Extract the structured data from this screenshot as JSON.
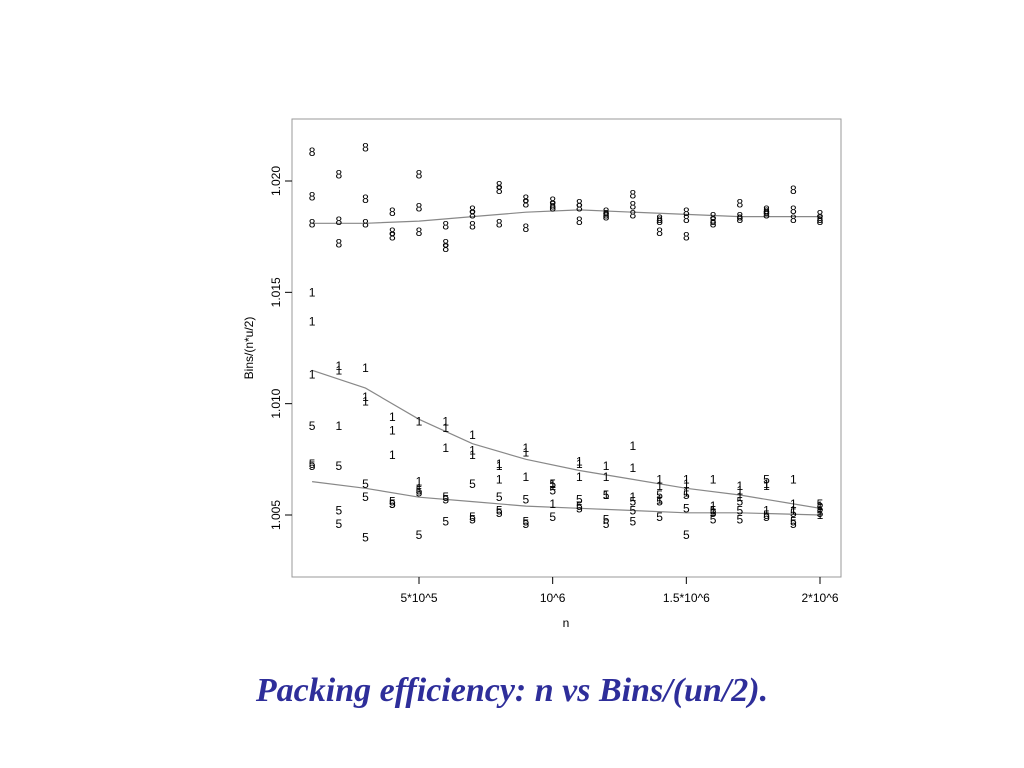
{
  "caption": "Packing efficiency: n vs Bins/(un/2).",
  "colors": {
    "caption": "#2e2e9a",
    "frame": "#999999",
    "curve": "#888888",
    "point": "#000000"
  },
  "chart_data": {
    "type": "scatter",
    "title": "",
    "xlabel": "n",
    "ylabel": "Bins/(n*u/2)",
    "xlim": [
      0,
      2000000
    ],
    "ylim": [
      1.0015,
      1.0223
    ],
    "x_ticks": [
      {
        "value": 500000,
        "label": "5*10^5"
      },
      {
        "value": 1000000,
        "label": "10^6"
      },
      {
        "value": 1500000,
        "label": "1.5*10^6"
      },
      {
        "value": 2000000,
        "label": "2*10^6"
      }
    ],
    "y_ticks": [
      {
        "value": 1.005,
        "label": "1.005"
      },
      {
        "value": 1.01,
        "label": "1.010"
      },
      {
        "value": 1.015,
        "label": "1.015"
      },
      {
        "value": 1.02,
        "label": "1.020"
      }
    ],
    "grid": false,
    "legend": "none",
    "series": [
      {
        "name": "8",
        "points": [
          [
            100000,
            1.0213
          ],
          [
            100000,
            1.0193
          ],
          [
            100000,
            1.0181
          ],
          [
            200000,
            1.0203
          ],
          [
            200000,
            1.0182
          ],
          [
            200000,
            1.0172
          ],
          [
            300000,
            1.0215
          ],
          [
            300000,
            1.0192
          ],
          [
            300000,
            1.0181
          ],
          [
            400000,
            1.0186
          ],
          [
            400000,
            1.0177
          ],
          [
            400000,
            1.0175
          ],
          [
            500000,
            1.0203
          ],
          [
            500000,
            1.0188
          ],
          [
            500000,
            1.0177
          ],
          [
            600000,
            1.018
          ],
          [
            600000,
            1.0172
          ],
          [
            600000,
            1.017
          ],
          [
            700000,
            1.0187
          ],
          [
            700000,
            1.0185
          ],
          [
            700000,
            1.018
          ],
          [
            800000,
            1.0198
          ],
          [
            800000,
            1.0196
          ],
          [
            800000,
            1.0181
          ],
          [
            900000,
            1.0192
          ],
          [
            900000,
            1.019
          ],
          [
            900000,
            1.0179
          ],
          [
            1000000,
            1.0191
          ],
          [
            1000000,
            1.0189
          ],
          [
            1000000,
            1.0188
          ],
          [
            1100000,
            1.019
          ],
          [
            1100000,
            1.0188
          ],
          [
            1100000,
            1.0182
          ],
          [
            1200000,
            1.0186
          ],
          [
            1200000,
            1.0185
          ],
          [
            1200000,
            1.0184
          ],
          [
            1300000,
            1.0194
          ],
          [
            1300000,
            1.0189
          ],
          [
            1300000,
            1.0185
          ],
          [
            1400000,
            1.0183
          ],
          [
            1400000,
            1.0182
          ],
          [
            1400000,
            1.0177
          ],
          [
            1500000,
            1.0186
          ],
          [
            1500000,
            1.0183
          ],
          [
            1500000,
            1.0175
          ],
          [
            1600000,
            1.0184
          ],
          [
            1600000,
            1.0182
          ],
          [
            1600000,
            1.0181
          ],
          [
            1700000,
            1.019
          ],
          [
            1700000,
            1.0184
          ],
          [
            1700000,
            1.0183
          ],
          [
            1800000,
            1.0187
          ],
          [
            1800000,
            1.0186
          ],
          [
            1800000,
            1.0185
          ],
          [
            1900000,
            1.0196
          ],
          [
            1900000,
            1.0187
          ],
          [
            1900000,
            1.0183
          ],
          [
            2000000,
            1.0185
          ],
          [
            2000000,
            1.0183
          ],
          [
            2000000,
            1.0182
          ]
        ],
        "smooth": [
          [
            100000,
            1.0181
          ],
          [
            300000,
            1.0181
          ],
          [
            500000,
            1.0182
          ],
          [
            700000,
            1.0184
          ],
          [
            900000,
            1.0186
          ],
          [
            1100000,
            1.0187
          ],
          [
            1300000,
            1.0186
          ],
          [
            1500000,
            1.0185
          ],
          [
            1700000,
            1.0184
          ],
          [
            2000000,
            1.0184
          ]
        ]
      },
      {
        "name": "1",
        "points": [
          [
            100000,
            1.015
          ],
          [
            100000,
            1.0137
          ],
          [
            100000,
            1.0113
          ],
          [
            200000,
            1.0117
          ],
          [
            200000,
            1.0115
          ],
          [
            200000,
            1.009
          ],
          [
            300000,
            1.0116
          ],
          [
            300000,
            1.0103
          ],
          [
            300000,
            1.0101
          ],
          [
            400000,
            1.0094
          ],
          [
            400000,
            1.0088
          ],
          [
            400000,
            1.0077
          ],
          [
            500000,
            1.0092
          ],
          [
            500000,
            1.0065
          ],
          [
            500000,
            1.0062
          ],
          [
            600000,
            1.0092
          ],
          [
            600000,
            1.0089
          ],
          [
            600000,
            1.008
          ],
          [
            700000,
            1.0086
          ],
          [
            700000,
            1.0079
          ],
          [
            700000,
            1.0077
          ],
          [
            800000,
            1.0073
          ],
          [
            800000,
            1.0066
          ],
          [
            800000,
            1.0072
          ],
          [
            900000,
            1.008
          ],
          [
            900000,
            1.0078
          ],
          [
            900000,
            1.0067
          ],
          [
            1000000,
            1.0064
          ],
          [
            1000000,
            1.0063
          ],
          [
            1000000,
            1.0055
          ],
          [
            1100000,
            1.0074
          ],
          [
            1100000,
            1.0073
          ],
          [
            1100000,
            1.0067
          ],
          [
            1200000,
            1.0072
          ],
          [
            1200000,
            1.0067
          ],
          [
            1200000,
            1.0059
          ],
          [
            1300000,
            1.0081
          ],
          [
            1300000,
            1.0071
          ],
          [
            1300000,
            1.0058
          ],
          [
            1400000,
            1.0066
          ],
          [
            1400000,
            1.0063
          ],
          [
            1400000,
            1.0057
          ],
          [
            1500000,
            1.0066
          ],
          [
            1500000,
            1.0064
          ],
          [
            1500000,
            1.006
          ],
          [
            1600000,
            1.0066
          ],
          [
            1600000,
            1.0054
          ],
          [
            1600000,
            1.0052
          ],
          [
            1700000,
            1.0063
          ],
          [
            1700000,
            1.0061
          ],
          [
            1700000,
            1.0058
          ],
          [
            1800000,
            1.0064
          ],
          [
            1800000,
            1.0063
          ],
          [
            1800000,
            1.0052
          ],
          [
            1900000,
            1.0066
          ],
          [
            1900000,
            1.0055
          ],
          [
            1900000,
            1.0052
          ],
          [
            2000000,
            1.0054
          ],
          [
            2000000,
            1.0052
          ],
          [
            2000000,
            1.005
          ]
        ],
        "smooth": [
          [
            100000,
            1.0115
          ],
          [
            300000,
            1.0107
          ],
          [
            500000,
            1.0093
          ],
          [
            700000,
            1.0082
          ],
          [
            900000,
            1.0075
          ],
          [
            1100000,
            1.007
          ],
          [
            1300000,
            1.0066
          ],
          [
            1500000,
            1.0062
          ],
          [
            1700000,
            1.0059
          ],
          [
            1900000,
            1.0055
          ],
          [
            2000000,
            1.0053
          ]
        ]
      },
      {
        "name": "5",
        "points": [
          [
            100000,
            1.009
          ],
          [
            100000,
            1.0073
          ],
          [
            100000,
            1.0072
          ],
          [
            200000,
            1.0072
          ],
          [
            200000,
            1.0052
          ],
          [
            200000,
            1.0046
          ],
          [
            300000,
            1.0064
          ],
          [
            300000,
            1.0058
          ],
          [
            300000,
            1.004
          ],
          [
            400000,
            1.0056
          ],
          [
            400000,
            1.0055
          ],
          [
            400000,
            1.0055
          ],
          [
            500000,
            1.0061
          ],
          [
            500000,
            1.006
          ],
          [
            500000,
            1.0041
          ],
          [
            600000,
            1.0058
          ],
          [
            600000,
            1.0057
          ],
          [
            600000,
            1.0047
          ],
          [
            700000,
            1.0064
          ],
          [
            700000,
            1.0049
          ],
          [
            700000,
            1.0048
          ],
          [
            800000,
            1.0058
          ],
          [
            800000,
            1.0052
          ],
          [
            800000,
            1.0051
          ],
          [
            900000,
            1.0057
          ],
          [
            900000,
            1.0047
          ],
          [
            900000,
            1.0046
          ],
          [
            1000000,
            1.0064
          ],
          [
            1000000,
            1.0061
          ],
          [
            1000000,
            1.0049
          ],
          [
            1100000,
            1.0057
          ],
          [
            1100000,
            1.0054
          ],
          [
            1100000,
            1.0053
          ],
          [
            1200000,
            1.0059
          ],
          [
            1200000,
            1.0048
          ],
          [
            1200000,
            1.0046
          ],
          [
            1300000,
            1.0056
          ],
          [
            1300000,
            1.0052
          ],
          [
            1300000,
            1.0047
          ],
          [
            1400000,
            1.0059
          ],
          [
            1400000,
            1.0056
          ],
          [
            1400000,
            1.0049
          ],
          [
            1500000,
            1.0059
          ],
          [
            1500000,
            1.0053
          ],
          [
            1500000,
            1.0041
          ],
          [
            1600000,
            1.0052
          ],
          [
            1600000,
            1.0051
          ],
          [
            1600000,
            1.0048
          ],
          [
            1700000,
            1.0056
          ],
          [
            1700000,
            1.0052
          ],
          [
            1700000,
            1.0048
          ],
          [
            1800000,
            1.0066
          ],
          [
            1800000,
            1.005
          ],
          [
            1800000,
            1.0049
          ],
          [
            1900000,
            1.0051
          ],
          [
            1900000,
            1.0047
          ],
          [
            1900000,
            1.0046
          ],
          [
            2000000,
            1.0055
          ],
          [
            2000000,
            1.0053
          ],
          [
            2000000,
            1.0051
          ]
        ],
        "smooth": [
          [
            100000,
            1.0065
          ],
          [
            300000,
            1.0062
          ],
          [
            500000,
            1.0058
          ],
          [
            700000,
            1.0056
          ],
          [
            900000,
            1.0054
          ],
          [
            1100000,
            1.0053
          ],
          [
            1300000,
            1.0052
          ],
          [
            1500000,
            1.0051
          ],
          [
            1700000,
            1.0051
          ],
          [
            2000000,
            1.005
          ]
        ]
      }
    ]
  }
}
